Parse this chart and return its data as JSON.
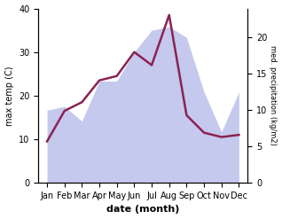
{
  "months": [
    "Jan",
    "Feb",
    "Mar",
    "Apr",
    "May",
    "Jun",
    "Jul",
    "Aug",
    "Sep",
    "Oct",
    "Nov",
    "Dec"
  ],
  "temp_max": [
    9.5,
    16.5,
    18.5,
    23.5,
    24.5,
    30.0,
    27.0,
    38.5,
    15.5,
    11.5,
    10.5,
    11.0
  ],
  "precipitation": [
    10.0,
    10.5,
    8.5,
    14.0,
    14.0,
    18.0,
    21.0,
    21.5,
    20.0,
    12.5,
    7.0,
    12.5
  ],
  "temp_color": "#8B2252",
  "precip_fill_color": "#b0b8e8",
  "precip_fill_alpha": 0.75,
  "xlabel": "date (month)",
  "ylabel_left": "max temp (C)",
  "ylabel_right": "med. precipitation (kg/m2)",
  "ylim_left": [
    0,
    40
  ],
  "ylim_right": [
    0,
    24
  ],
  "yticks_left": [
    0,
    10,
    20,
    30,
    40
  ],
  "yticks_right": [
    0,
    5,
    10,
    15,
    20
  ],
  "background_color": "#ffffff",
  "line_width": 1.8
}
